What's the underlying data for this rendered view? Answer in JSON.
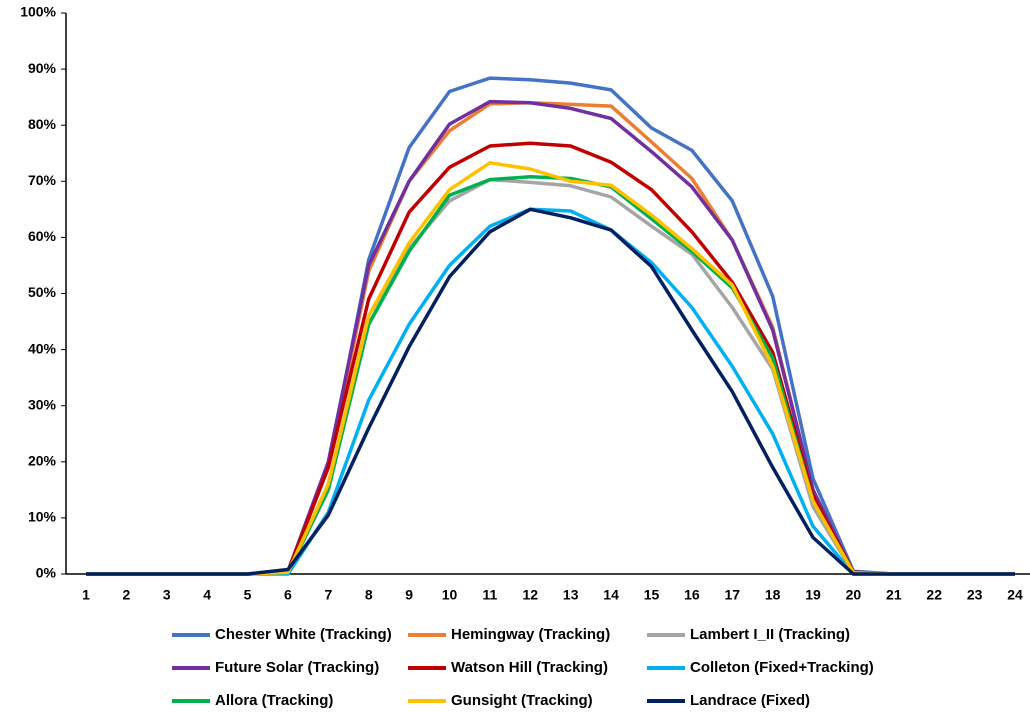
{
  "chart_data": {
    "type": "line",
    "categories": [
      1,
      2,
      3,
      4,
      5,
      6,
      7,
      8,
      9,
      10,
      11,
      12,
      13,
      14,
      15,
      16,
      17,
      18,
      19,
      20,
      21,
      22,
      23,
      24
    ],
    "ylim": [
      0,
      100
    ],
    "yticks": [
      {
        "value": 0,
        "label": "0%"
      },
      {
        "value": 10,
        "label": "10%"
      },
      {
        "value": 20,
        "label": "20%"
      },
      {
        "value": 30,
        "label": "30%"
      },
      {
        "value": 40,
        "label": "40%"
      },
      {
        "value": 50,
        "label": "50%"
      },
      {
        "value": 60,
        "label": "60%"
      },
      {
        "value": 70,
        "label": "70%"
      },
      {
        "value": 80,
        "label": "80%"
      },
      {
        "value": 90,
        "label": "90%"
      },
      {
        "value": 100,
        "label": "100%"
      }
    ],
    "series": [
      {
        "name": "Chester White (Tracking)",
        "color": "#4472c4",
        "values": [
          0,
          0,
          0,
          0,
          0,
          0.5,
          19,
          56,
          76,
          86,
          88.4,
          88.1,
          87.5,
          86.3,
          79.5,
          75.5,
          66.5,
          49.5,
          17,
          0.5,
          0,
          0,
          0,
          0
        ]
      },
      {
        "name": "Hemingway (Tracking)",
        "color": "#ed7d31",
        "values": [
          0,
          0,
          0,
          0,
          0,
          0.5,
          19,
          54,
          70,
          79,
          83.8,
          84,
          83.7,
          83.4,
          77,
          70.5,
          59.5,
          44,
          15,
          0.3,
          0,
          0,
          0,
          0
        ]
      },
      {
        "name": "Lambert I_II (Tracking)",
        "color": "#a5a5a5",
        "values": [
          0,
          0,
          0,
          0,
          0,
          0.3,
          16,
          46,
          58,
          66.5,
          70.3,
          69.8,
          69.2,
          67.2,
          62,
          57,
          47.5,
          36.5,
          12,
          0.2,
          0,
          0,
          0,
          0
        ]
      },
      {
        "name": "Future Solar (Tracking)",
        "color": "#7030a0",
        "values": [
          0,
          0,
          0,
          0,
          0,
          0.5,
          20,
          55,
          70,
          80.2,
          84.2,
          84,
          83,
          81.2,
          75.3,
          69,
          59.5,
          43.5,
          15,
          0.3,
          0,
          0,
          0,
          0
        ]
      },
      {
        "name": "Watson Hill (Tracking)",
        "color": "#c00000",
        "values": [
          0,
          0,
          0,
          0,
          0,
          0.5,
          19,
          49,
          64.5,
          72.5,
          76.3,
          76.8,
          76.3,
          73.4,
          68.5,
          61,
          52,
          39.5,
          14,
          0.3,
          0,
          0,
          0,
          0
        ]
      },
      {
        "name": "Colleton (Fixed+Tracking)",
        "color": "#00b0f0",
        "values": [
          0,
          0,
          0,
          0,
          0,
          0,
          11,
          31,
          44.5,
          55,
          62,
          65,
          64.7,
          61.3,
          55.5,
          47.5,
          37,
          25,
          8.5,
          0,
          0,
          0,
          0,
          0
        ]
      },
      {
        "name": "Allora (Tracking)",
        "color": "#00b050",
        "values": [
          0,
          0,
          0,
          0,
          0,
          0.3,
          15,
          44.5,
          57.5,
          67.5,
          70.3,
          70.8,
          70.5,
          69,
          63.3,
          57.5,
          51,
          38.5,
          13,
          0.2,
          0,
          0,
          0,
          0
        ]
      },
      {
        "name": "Gunsight (Tracking)",
        "color": "#ffc000",
        "values": [
          0,
          0,
          0,
          0,
          0,
          0.3,
          16,
          46,
          59,
          68.5,
          73.3,
          72.2,
          70,
          69.3,
          64,
          58,
          51.5,
          37,
          13,
          0.2,
          0,
          0,
          0,
          0
        ]
      },
      {
        "name": "Landrace (Fixed)",
        "color": "#002060",
        "values": [
          0,
          0,
          0,
          0,
          0,
          0.8,
          10.5,
          26,
          40.5,
          53,
          61,
          65,
          63.5,
          61.3,
          54.8,
          43.5,
          32.5,
          19,
          6.5,
          0,
          0,
          0,
          0,
          0
        ]
      }
    ]
  }
}
